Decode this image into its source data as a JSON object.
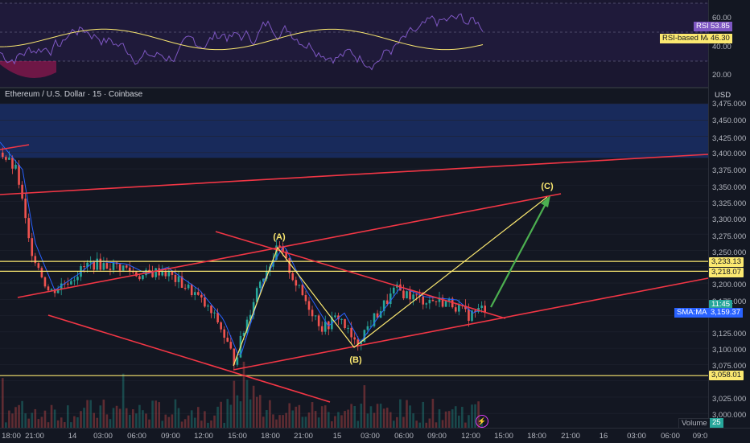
{
  "symbol": {
    "title": "Ethereum / U.S. Dollar · 15 · Coinbase",
    "currency": "USD"
  },
  "rsi": {
    "label": "RSI",
    "value": "53.85",
    "ma_label": "RSI-based MA",
    "ma_value": "46.30",
    "ticks": [
      "60.00",
      "40.00",
      "20.00"
    ]
  },
  "price_axis": {
    "ticks": [
      "3,475.000",
      "3,450.000",
      "3,425.000",
      "3,400.000",
      "3,375.000",
      "3,350.000",
      "3,325.000",
      "3,300.000",
      "3,275.000",
      "3,250.000",
      "3,200.000",
      "3,175.000",
      "3,125.000",
      "3,100.000",
      "3,075.000",
      "3,025.000",
      "3,000.000"
    ]
  },
  "price_tags": {
    "level_1": "3,233.13",
    "level_2": "3,218.07",
    "countdown": "11:45",
    "sma_label": "SMA:MA",
    "sma_value": "3,159.37",
    "level_3": "3,058.01"
  },
  "time_axis": {
    "labels": [
      "18:00",
      "21:00",
      "14",
      "03:00",
      "06:00",
      "09:00",
      "12:00",
      "15:00",
      "18:00",
      "21:00",
      "15",
      "03:00",
      "06:00",
      "09:00",
      "12:00",
      "15:00",
      "18:00",
      "21:00",
      "16",
      "03:00",
      "06:00",
      "09:0"
    ]
  },
  "waves": {
    "a": "(A)",
    "b": "(B)",
    "c": "(C)"
  },
  "volume": {
    "label": "Volume",
    "value": "25"
  },
  "colors": {
    "background": "#131722",
    "up_candle": "#26a69a",
    "down_candle": "#ef5350",
    "trendline": "#f23645",
    "wave_line": "#fbe870",
    "projection": "#4caf50",
    "rsi": "#7e57c2",
    "zone": "#1e3a8a"
  },
  "chart_data": {
    "type": "candlestick",
    "price_range": [
      3000,
      3490
    ],
    "horizontal_levels": [
      3233.13,
      3218.07,
      3058.01
    ],
    "sma_last": 3159.37,
    "supply_zone": [
      3392,
      3475
    ],
    "wave_points": [
      {
        "label": "(A)",
        "price": 3255
      },
      {
        "label": "(B)",
        "price": 3100
      },
      {
        "label": "(C)",
        "price": 3332
      }
    ]
  }
}
